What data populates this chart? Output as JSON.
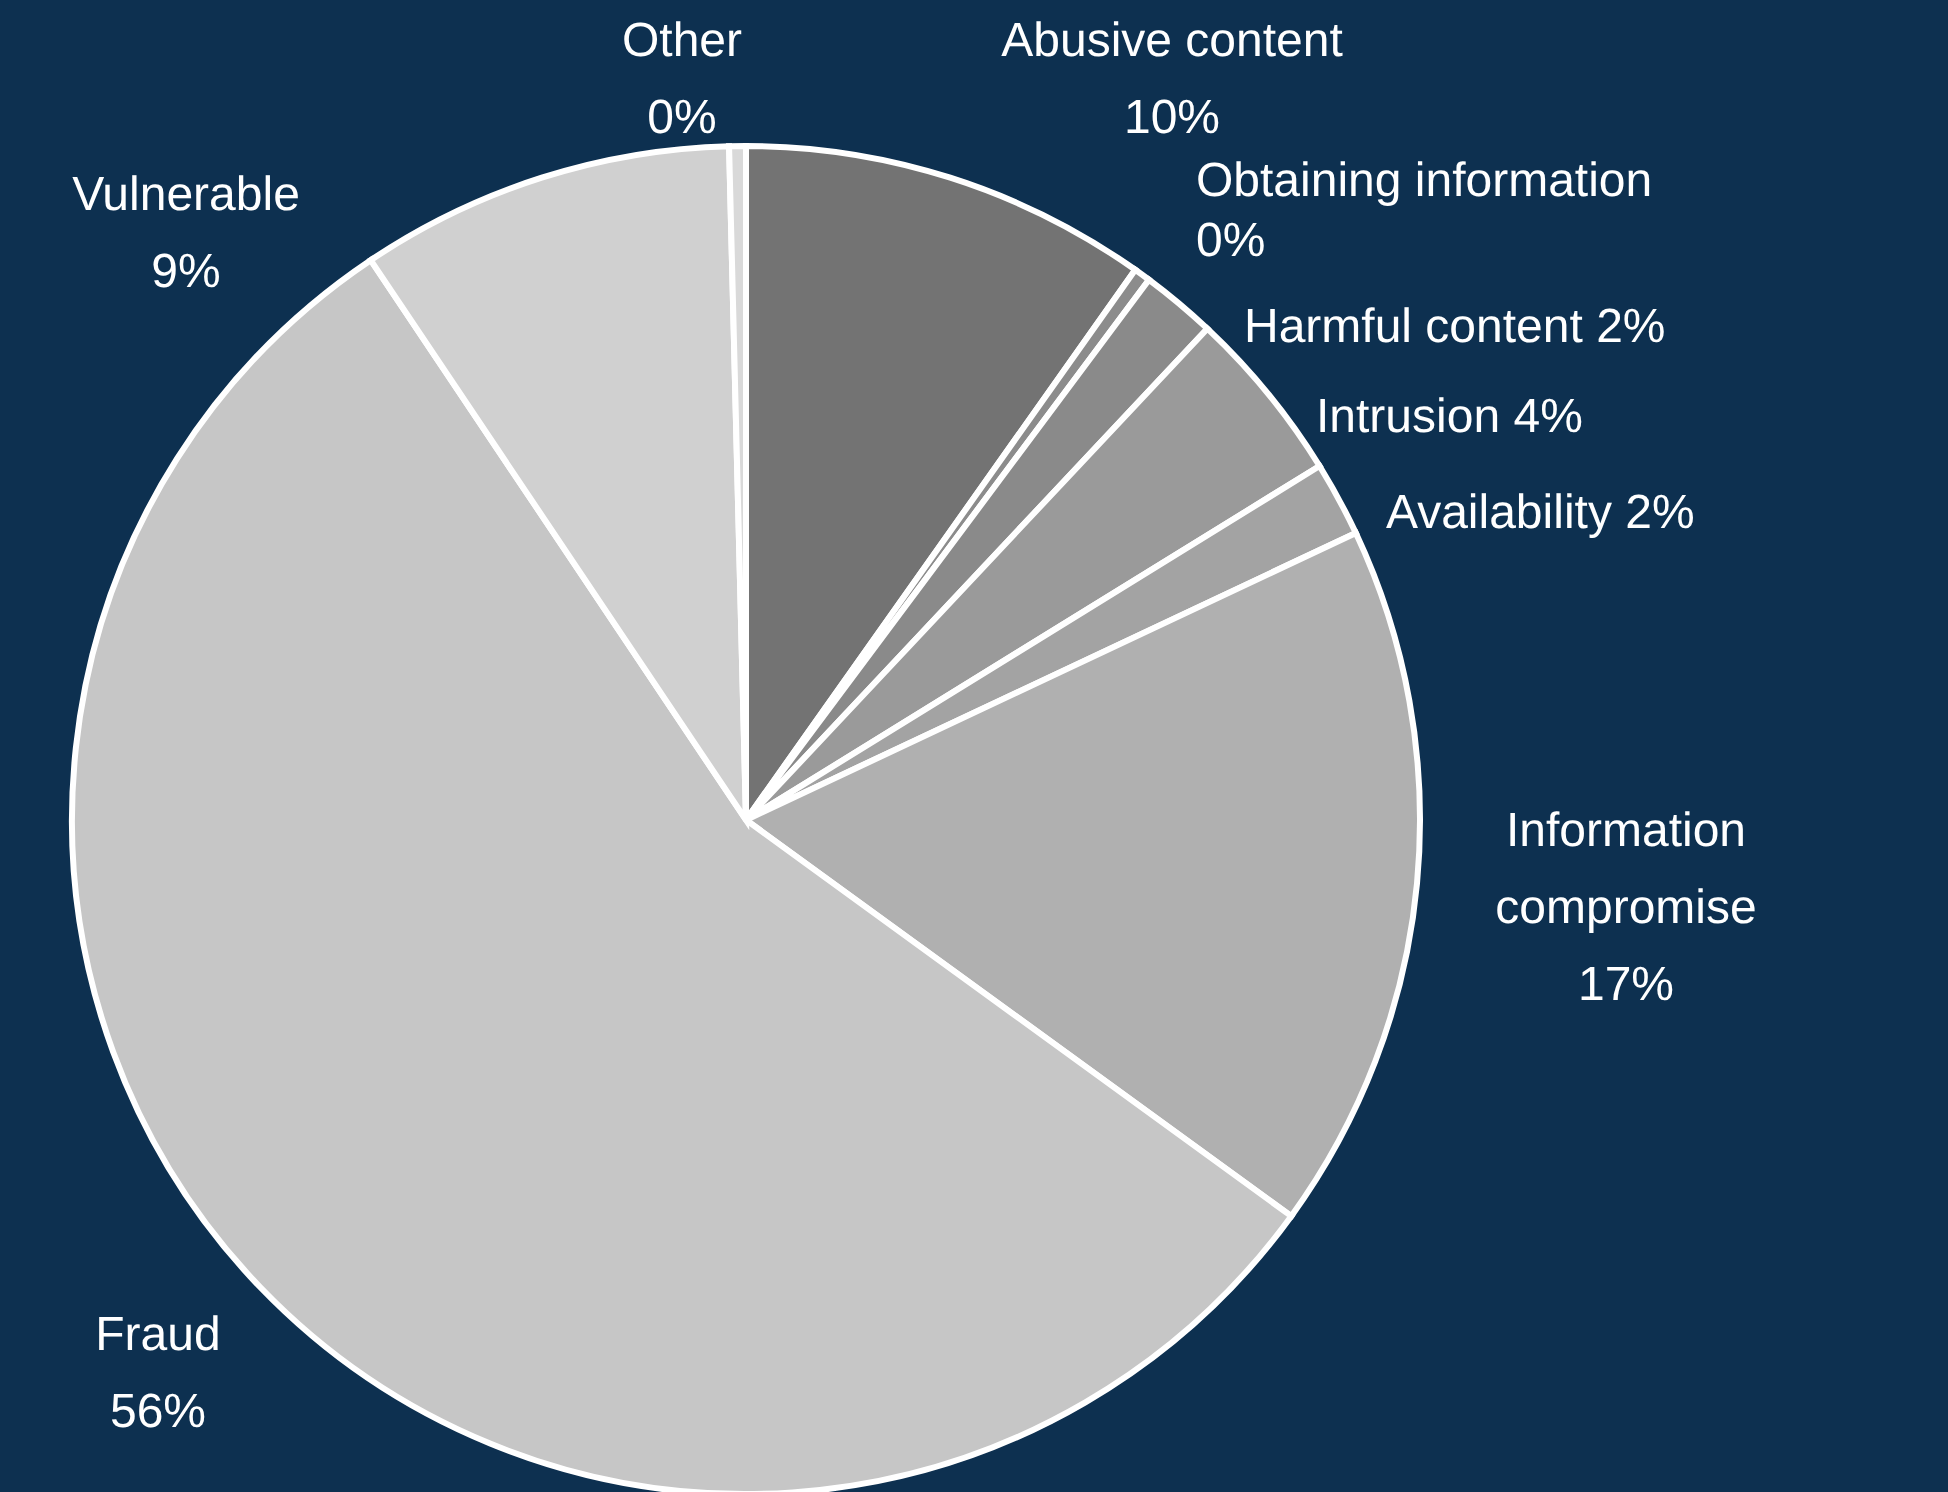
{
  "chart_data": {
    "type": "pie",
    "categories": [
      "Abusive content",
      "Obtaining information",
      "Harmful content",
      "Intrusion",
      "Availability",
      "Information compromise",
      "Fraud",
      "Vulnerable",
      "Other"
    ],
    "values": [
      9.8,
      0.4,
      1.8,
      4.2,
      1.8,
      17,
      55.6,
      9,
      0.4
    ],
    "value_labels": [
      "10%",
      "0%",
      "2%",
      "4%",
      "2%",
      "17%",
      "56%",
      "9%",
      "0%"
    ],
    "colors": [
      "#737373",
      "#8c8c8c",
      "#8a8a8a",
      "#9a9a9a",
      "#a3a3a3",
      "#b0b0b0",
      "#c6c6c6",
      "#d0d0d0",
      "#d9d9d9"
    ],
    "legend": false
  }
}
